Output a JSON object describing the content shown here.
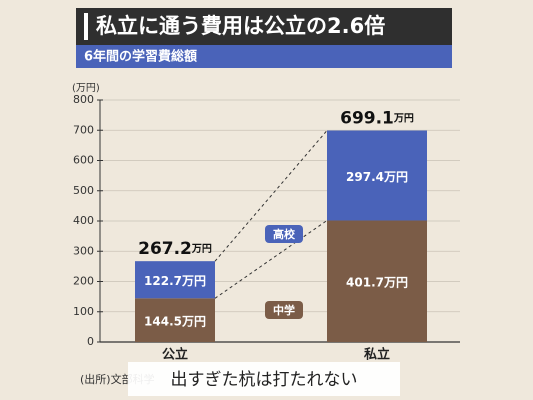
{
  "chart_data": {
    "type": "stacked-bar",
    "title": "私立に通う費用は公立の2.6倍",
    "subtitle": "6年間の学習費総額",
    "y_unit_label": "(万円)",
    "categories": [
      "公立",
      "私立"
    ],
    "series": [
      {
        "name": "中学",
        "color": "#7b5c47",
        "values": [
          144.5,
          401.7
        ],
        "value_labels": [
          "144.5万円",
          "401.7万円"
        ]
      },
      {
        "name": "高校",
        "color": "#4a63b9",
        "values": [
          122.7,
          297.4
        ],
        "value_labels": [
          "122.7万円",
          "297.4万円"
        ]
      }
    ],
    "totals": [
      267.2,
      699.1
    ],
    "total_unit": "万円",
    "ylim": [
      0,
      800
    ],
    "yticks": [
      0,
      100,
      200,
      300,
      400,
      500,
      600,
      700,
      800
    ],
    "grid": true,
    "source": "(出所)文部科学",
    "watermark": "出すぎた杭は打たれない"
  }
}
